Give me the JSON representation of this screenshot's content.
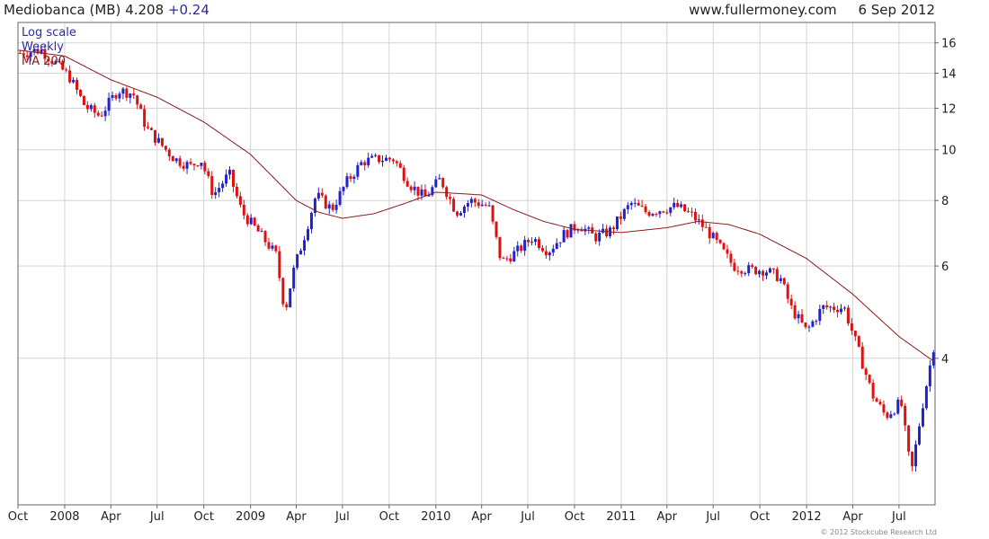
{
  "header": {
    "name": "Mediobanca (MB)",
    "price": "4.208",
    "change": "+0.24",
    "site": "www.fullermoney.com",
    "date": "6 Sep 2012"
  },
  "legend": {
    "scale": "Log scale",
    "period": "Weekly",
    "ma": "MA 200"
  },
  "copyright": "© 2012 Stockcube Research Ltd",
  "colors": {
    "up": "#2222cc",
    "down": "#dd1111",
    "ma": "#8b1a1a",
    "grid": "#d4d4d4",
    "frame": "#666666"
  },
  "chart_data": {
    "type": "candlestick",
    "scale": "log",
    "ylim": [
      2.1,
      17.5
    ],
    "yticks": [
      4,
      6,
      8,
      10,
      12,
      14,
      16
    ],
    "x_range": [
      "2007-10-01",
      "2012-09-10"
    ],
    "xticks": [
      {
        "date": "2007-10-01",
        "label": "Oct"
      },
      {
        "date": "2008-01-01",
        "label": "2008"
      },
      {
        "date": "2008-04-01",
        "label": "Apr"
      },
      {
        "date": "2008-07-01",
        "label": "Jul"
      },
      {
        "date": "2008-10-01",
        "label": "Oct"
      },
      {
        "date": "2009-01-01",
        "label": "2009"
      },
      {
        "date": "2009-04-01",
        "label": "Apr"
      },
      {
        "date": "2009-07-01",
        "label": "Jul"
      },
      {
        "date": "2009-10-01",
        "label": "Oct"
      },
      {
        "date": "2010-01-01",
        "label": "2010"
      },
      {
        "date": "2010-04-01",
        "label": "Apr"
      },
      {
        "date": "2010-07-01",
        "label": "Jul"
      },
      {
        "date": "2010-10-01",
        "label": "Oct"
      },
      {
        "date": "2011-01-01",
        "label": "2011"
      },
      {
        "date": "2011-04-01",
        "label": "Apr"
      },
      {
        "date": "2011-07-01",
        "label": "Jul"
      },
      {
        "date": "2011-10-01",
        "label": "Oct"
      },
      {
        "date": "2012-01-01",
        "label": "2012"
      },
      {
        "date": "2012-04-01",
        "label": "Apr"
      },
      {
        "date": "2012-07-01",
        "label": "Jul"
      }
    ],
    "close_path": [
      [
        "2007-10-05",
        15.3
      ],
      [
        "2007-11-15",
        15.5
      ],
      [
        "2007-12-15",
        14.6
      ],
      [
        "2008-01-10",
        13.8
      ],
      [
        "2008-02-10",
        12.1
      ],
      [
        "2008-03-10",
        11.6
      ],
      [
        "2008-04-15",
        13.0
      ],
      [
        "2008-05-15",
        12.8
      ],
      [
        "2008-06-10",
        11.0
      ],
      [
        "2008-07-10",
        10.2
      ],
      [
        "2008-08-05",
        9.6
      ],
      [
        "2008-09-05",
        9.3
      ],
      [
        "2008-09-25",
        9.6
      ],
      [
        "2008-10-20",
        8.2
      ],
      [
        "2008-11-20",
        9.0
      ],
      [
        "2008-12-15",
        7.6
      ],
      [
        "2009-01-20",
        6.9
      ],
      [
        "2009-02-20",
        6.3
      ],
      [
        "2009-03-10",
        4.9
      ],
      [
        "2009-03-25",
        5.8
      ],
      [
        "2009-04-20",
        7.0
      ],
      [
        "2009-05-10",
        8.2
      ],
      [
        "2009-06-10",
        7.7
      ],
      [
        "2009-07-10",
        8.7
      ],
      [
        "2009-08-10",
        9.5
      ],
      [
        "2009-09-10",
        9.6
      ],
      [
        "2009-10-10",
        9.6
      ],
      [
        "2009-11-10",
        8.6
      ],
      [
        "2009-12-10",
        8.1
      ],
      [
        "2010-01-10",
        8.8
      ],
      [
        "2010-02-10",
        7.6
      ],
      [
        "2010-03-10",
        8.0
      ],
      [
        "2010-04-15",
        7.8
      ],
      [
        "2010-05-10",
        6.1
      ],
      [
        "2010-06-10",
        6.4
      ],
      [
        "2010-07-10",
        6.8
      ],
      [
        "2010-08-10",
        6.4
      ],
      [
        "2010-09-10",
        6.9
      ],
      [
        "2010-10-10",
        7.2
      ],
      [
        "2010-11-10",
        6.8
      ],
      [
        "2010-12-10",
        7.0
      ],
      [
        "2011-01-20",
        7.9
      ],
      [
        "2011-02-20",
        7.6
      ],
      [
        "2011-03-20",
        7.7
      ],
      [
        "2011-04-20",
        7.8
      ],
      [
        "2011-05-20",
        7.5
      ],
      [
        "2011-06-20",
        7.0
      ],
      [
        "2011-07-10",
        6.6
      ],
      [
        "2011-08-10",
        6.0
      ],
      [
        "2011-09-10",
        5.9
      ],
      [
        "2011-10-10",
        5.9
      ],
      [
        "2011-11-10",
        5.7
      ],
      [
        "2011-12-01",
        5.0
      ],
      [
        "2012-01-01",
        4.5
      ],
      [
        "2012-02-01",
        5.0
      ],
      [
        "2012-03-15",
        5.0
      ],
      [
        "2012-04-10",
        4.2
      ],
      [
        "2012-05-10",
        3.4
      ],
      [
        "2012-06-05",
        3.1
      ],
      [
        "2012-07-05",
        3.3
      ],
      [
        "2012-07-25",
        2.4
      ],
      [
        "2012-08-15",
        3.2
      ],
      [
        "2012-09-07",
        4.21
      ]
    ],
    "ma_200": [
      [
        "2007-10-01",
        15.5
      ],
      [
        "2008-01-01",
        15.1
      ],
      [
        "2008-04-01",
        13.6
      ],
      [
        "2008-07-01",
        12.6
      ],
      [
        "2008-10-01",
        11.3
      ],
      [
        "2009-01-01",
        9.8
      ],
      [
        "2009-04-01",
        8.0
      ],
      [
        "2009-05-15",
        7.6
      ],
      [
        "2009-07-01",
        7.4
      ],
      [
        "2009-09-01",
        7.55
      ],
      [
        "2009-11-01",
        7.9
      ],
      [
        "2010-01-01",
        8.3
      ],
      [
        "2010-04-01",
        8.2
      ],
      [
        "2010-06-01",
        7.7
      ],
      [
        "2010-08-01",
        7.3
      ],
      [
        "2010-10-01",
        7.05
      ],
      [
        "2011-01-01",
        6.95
      ],
      [
        "2011-04-01",
        7.1
      ],
      [
        "2011-06-01",
        7.3
      ],
      [
        "2011-08-01",
        7.2
      ],
      [
        "2011-10-01",
        6.9
      ],
      [
        "2012-01-01",
        6.2
      ],
      [
        "2012-04-01",
        5.3
      ],
      [
        "2012-07-01",
        4.4
      ],
      [
        "2012-09-07",
        3.95
      ]
    ]
  }
}
